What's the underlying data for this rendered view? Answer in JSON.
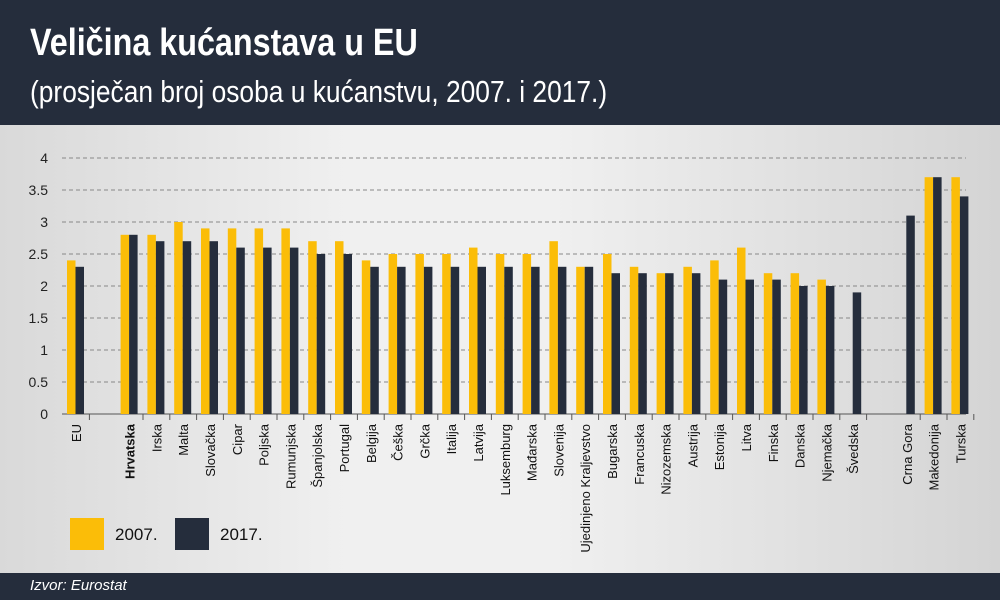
{
  "header": {
    "title": "Veličina kućanstava u EU",
    "subtitle": "(prosječan broj osoba u kućanstvu, 2007. i 2017.)"
  },
  "footer": {
    "source": "Izvor: Eurostat"
  },
  "colors": {
    "y2007": "#fbbd08",
    "y2017": "#252d3c"
  },
  "chart_data": {
    "type": "bar",
    "title": "Veličina kućanstava u EU",
    "ylim": [
      0,
      4
    ],
    "yticks": [
      "0",
      "0.5",
      "1",
      "1.5",
      "2",
      "2.5",
      "3",
      "3.5",
      "4"
    ],
    "grid": true,
    "legend_position": "bottom-left",
    "categories": [
      "EU",
      "Hrvatska",
      "Irska",
      "Malta",
      "Slovačka",
      "Cipar",
      "Poljska",
      "Rumunjska",
      "Španjolska",
      "Portugal",
      "Belgija",
      "Češka",
      "Grčka",
      "Italija",
      "Latvija",
      "Luksemburg",
      "Mađarska",
      "Slovenija",
      "Ujedinjeno Kraljevstvo",
      "Bugarska",
      "Francuska",
      "Nizozemska",
      "Austrija",
      "Estonija",
      "Litva",
      "Finska",
      "Danska",
      "Njemačka",
      "Švedska",
      "Crna Gora",
      "Makedonija",
      "Turska"
    ],
    "series": [
      {
        "name": "2007.",
        "values": [
          2.4,
          2.8,
          2.8,
          3.0,
          2.9,
          2.9,
          2.9,
          2.9,
          2.7,
          2.7,
          2.4,
          2.5,
          2.5,
          2.5,
          2.6,
          2.5,
          2.5,
          2.7,
          2.3,
          2.5,
          2.3,
          2.2,
          2.3,
          2.4,
          2.6,
          2.2,
          2.2,
          2.1,
          null,
          null,
          3.7,
          3.7
        ]
      },
      {
        "name": "2017.",
        "values": [
          2.3,
          2.8,
          2.7,
          2.7,
          2.7,
          2.6,
          2.6,
          2.6,
          2.5,
          2.5,
          2.3,
          2.3,
          2.3,
          2.3,
          2.3,
          2.3,
          2.3,
          2.3,
          2.3,
          2.2,
          2.2,
          2.2,
          2.2,
          2.1,
          2.1,
          2.1,
          2.0,
          2.0,
          1.9,
          3.1,
          3.7,
          3.4
        ]
      }
    ],
    "highlight": "Hrvatska"
  }
}
